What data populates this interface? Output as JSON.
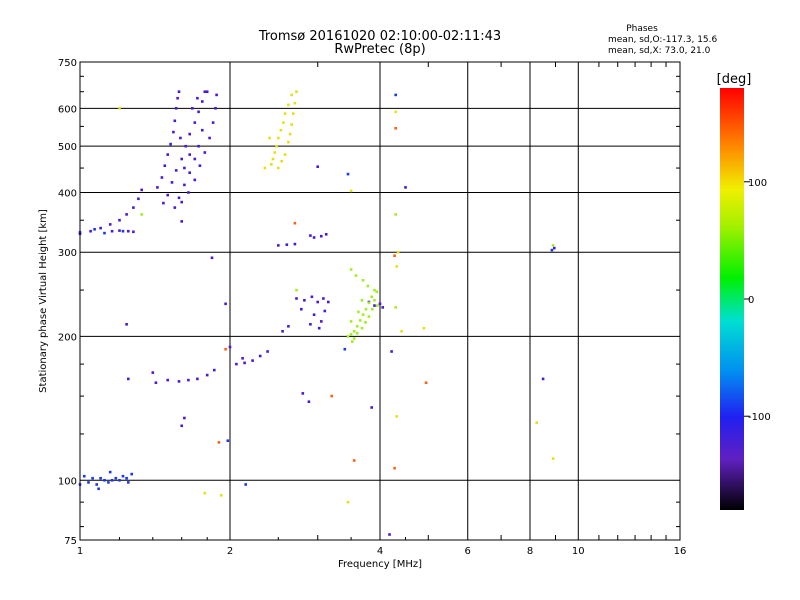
{
  "chart_data": {
    "type": "scatter",
    "title": "Tromsø 20161020 02:10:00-02:11:43",
    "subtitle": "RwPretec (8p)",
    "xlabel": "Frequency [MHz]",
    "ylabel": "Stationary phase Virtual Height [km]",
    "x_scale": "log",
    "y_scale": "log",
    "xlim": [
      1,
      16
    ],
    "ylim": [
      75,
      750
    ],
    "x_ticks": [
      1,
      2,
      4,
      6,
      8,
      10,
      16
    ],
    "y_ticks": [
      75,
      100,
      200,
      300,
      400,
      500,
      600,
      750
    ],
    "grid": true,
    "stats": {
      "heading": "Phases",
      "line_o": "mean, sd,O:-117.3, 15.6",
      "line_x": "mean, sd,X:  73.0, 21.0"
    },
    "colorbar": {
      "label": "[deg]",
      "ticks": [
        -100,
        0,
        100
      ],
      "range": [
        -180,
        180
      ]
    },
    "series": [
      {
        "phase_deg": -130,
        "color": "#4a18d8",
        "points": [
          [
            1.0,
            328
          ],
          [
            1.05,
            332
          ],
          [
            1.1,
            337
          ],
          [
            1.15,
            343
          ],
          [
            1.2,
            350
          ],
          [
            1.24,
            360
          ],
          [
            1.28,
            372
          ],
          [
            1.31,
            388
          ],
          [
            1.33,
            405
          ],
          [
            1.16,
            332
          ],
          [
            1.2,
            333
          ],
          [
            1.25,
            332
          ],
          [
            1.28,
            331
          ],
          [
            1.43,
            410
          ],
          [
            1.46,
            430
          ],
          [
            1.48,
            455
          ],
          [
            1.5,
            480
          ],
          [
            1.52,
            505
          ],
          [
            1.54,
            535
          ],
          [
            1.55,
            565
          ],
          [
            1.56,
            600
          ],
          [
            1.57,
            630
          ],
          [
            1.58,
            650
          ],
          [
            1.47,
            380
          ],
          [
            1.5,
            395
          ],
          [
            1.53,
            420
          ],
          [
            1.56,
            445
          ],
          [
            1.6,
            470
          ],
          [
            1.63,
            500
          ],
          [
            1.66,
            530
          ],
          [
            1.7,
            560
          ],
          [
            1.73,
            590
          ],
          [
            1.76,
            620
          ],
          [
            1.78,
            650
          ],
          [
            1.55,
            372
          ],
          [
            1.6,
            382
          ],
          [
            1.65,
            400
          ],
          [
            1.7,
            425
          ],
          [
            1.74,
            455
          ],
          [
            1.78,
            485
          ],
          [
            1.82,
            520
          ],
          [
            1.85,
            560
          ],
          [
            1.87,
            600
          ],
          [
            1.88,
            640
          ],
          [
            1.58,
            390
          ],
          [
            1.62,
            415
          ],
          [
            1.66,
            440
          ],
          [
            1.7,
            470
          ],
          [
            1.73,
            500
          ],
          [
            1.76,
            540
          ],
          [
            1.68,
            600
          ],
          [
            1.72,
            630
          ],
          [
            1.8,
            650
          ],
          [
            1.62,
            450
          ],
          [
            1.66,
            480
          ],
          [
            1.59,
            520
          ],
          [
            1.42,
            160
          ],
          [
            1.5,
            162
          ],
          [
            1.58,
            161
          ],
          [
            1.65,
            162
          ],
          [
            1.72,
            163
          ],
          [
            1.8,
            166
          ],
          [
            1.86,
            170
          ],
          [
            2.06,
            175
          ],
          [
            2.14,
            176
          ],
          [
            2.22,
            178
          ],
          [
            2.3,
            182
          ],
          [
            2.38,
            186
          ],
          [
            2.5,
            310
          ],
          [
            2.6,
            311
          ],
          [
            2.7,
            312
          ],
          [
            2.9,
            325
          ],
          [
            2.95,
            322
          ],
          [
            3.05,
            324
          ],
          [
            3.12,
            327
          ],
          [
            2.72,
            240
          ],
          [
            2.82,
            238
          ],
          [
            2.92,
            242
          ],
          [
            3.0,
            236
          ],
          [
            3.08,
            240
          ],
          [
            3.15,
            236
          ],
          [
            2.95,
            222
          ],
          [
            3.1,
            226
          ],
          [
            3.05,
            215
          ],
          [
            2.55,
            205
          ],
          [
            2.62,
            210
          ],
          [
            2.78,
            228
          ],
          [
            2.9,
            212
          ],
          [
            3.02,
            208
          ],
          [
            3.8,
            236
          ],
          [
            3.9,
            232
          ],
          [
            4.0,
            234
          ],
          [
            4.05,
            230
          ],
          [
            1.25,
            163
          ],
          [
            1.4,
            168
          ],
          [
            1.6,
            130
          ],
          [
            1.62,
            135
          ],
          [
            1.24,
            212
          ],
          [
            1.84,
            292
          ],
          [
            1.96,
            234
          ],
          [
            2.0,
            190
          ],
          [
            2.12,
            180
          ],
          [
            2.8,
            152
          ],
          [
            2.88,
            146
          ],
          [
            3.0,
            453
          ],
          [
            3.85,
            142
          ],
          [
            4.22,
            186
          ],
          [
            4.18,
            77
          ],
          [
            4.5,
            410
          ],
          [
            8.5,
            163
          ],
          [
            8.95,
            306
          ],
          [
            1.6,
            348
          ]
        ]
      },
      {
        "phase_deg": -115,
        "color": "#1a38f0",
        "points": [
          [
            1.02,
            102
          ],
          [
            1.04,
            99
          ],
          [
            1.06,
            101
          ],
          [
            1.08,
            98
          ],
          [
            1.1,
            101
          ],
          [
            1.12,
            100
          ],
          [
            1.14,
            99
          ],
          [
            1.16,
            100
          ],
          [
            1.18,
            101
          ],
          [
            1.2,
            100
          ],
          [
            1.22,
            102
          ],
          [
            1.24,
            101
          ],
          [
            1.27,
            103
          ],
          [
            1.0,
            98
          ],
          [
            1.09,
            96
          ],
          [
            1.15,
            104
          ],
          [
            1.25,
            99
          ],
          [
            1.0,
            330
          ],
          [
            1.07,
            335
          ],
          [
            1.12,
            329
          ],
          [
            1.22,
            332
          ],
          [
            3.45,
            437
          ],
          [
            3.4,
            188
          ],
          [
            2.15,
            98
          ],
          [
            1.98,
            121
          ],
          [
            4.3,
            640
          ],
          [
            8.85,
            303
          ]
        ]
      },
      {
        "phase_deg": 90,
        "color": "#e6e010",
        "points": [
          [
            2.42,
            458
          ],
          [
            2.44,
            470
          ],
          [
            2.46,
            485
          ],
          [
            2.48,
            500
          ],
          [
            2.5,
            520
          ],
          [
            2.53,
            540
          ],
          [
            2.56,
            560
          ],
          [
            2.58,
            585
          ],
          [
            2.62,
            610
          ],
          [
            2.66,
            640
          ],
          [
            2.5,
            450
          ],
          [
            2.54,
            465
          ],
          [
            2.58,
            480
          ],
          [
            2.62,
            510
          ],
          [
            2.64,
            530
          ],
          [
            2.66,
            555
          ],
          [
            2.68,
            585
          ],
          [
            2.7,
            615
          ],
          [
            2.72,
            650
          ],
          [
            1.2,
            600
          ],
          [
            1.78,
            94
          ],
          [
            1.92,
            93
          ],
          [
            3.45,
            90
          ],
          [
            4.3,
            590
          ],
          [
            4.42,
            205
          ],
          [
            4.32,
            280
          ],
          [
            4.9,
            208
          ],
          [
            4.32,
            136
          ],
          [
            8.25,
            132
          ],
          [
            8.9,
            111
          ],
          [
            2.35,
            450
          ],
          [
            2.4,
            520
          ],
          [
            3.5,
            403
          ],
          [
            4.35,
            300
          ]
        ]
      },
      {
        "phase_deg": 50,
        "color": "#a0f020",
        "points": [
          [
            3.5,
            202
          ],
          [
            3.55,
            205
          ],
          [
            3.6,
            210
          ],
          [
            3.65,
            216
          ],
          [
            3.7,
            222
          ],
          [
            3.75,
            228
          ],
          [
            3.8,
            235
          ],
          [
            3.85,
            242
          ],
          [
            3.9,
            250
          ],
          [
            3.55,
            198
          ],
          [
            3.6,
            203
          ],
          [
            3.68,
            208
          ],
          [
            3.74,
            214
          ],
          [
            3.8,
            220
          ],
          [
            3.86,
            228
          ],
          [
            3.9,
            238
          ],
          [
            3.94,
            248
          ],
          [
            3.7,
            262
          ],
          [
            3.78,
            255
          ],
          [
            3.45,
            200
          ],
          [
            3.52,
            195
          ],
          [
            3.62,
            225
          ],
          [
            3.5,
            215
          ],
          [
            3.58,
            268
          ],
          [
            3.68,
            238
          ],
          [
            3.95,
            232
          ],
          [
            2.72,
            250
          ],
          [
            4.3,
            230
          ],
          [
            4.3,
            360
          ],
          [
            1.33,
            360
          ],
          [
            8.9,
            310
          ],
          [
            3.5,
            276
          ]
        ]
      },
      {
        "phase_deg": 160,
        "color": "#ff6010",
        "points": [
          [
            1.9,
            120
          ],
          [
            1.96,
            188
          ],
          [
            2.7,
            345
          ],
          [
            3.2,
            150
          ],
          [
            3.55,
            110
          ],
          [
            4.28,
            106
          ],
          [
            4.3,
            545
          ],
          [
            4.95,
            160
          ],
          [
            4.28,
            295
          ]
        ]
      }
    ]
  }
}
